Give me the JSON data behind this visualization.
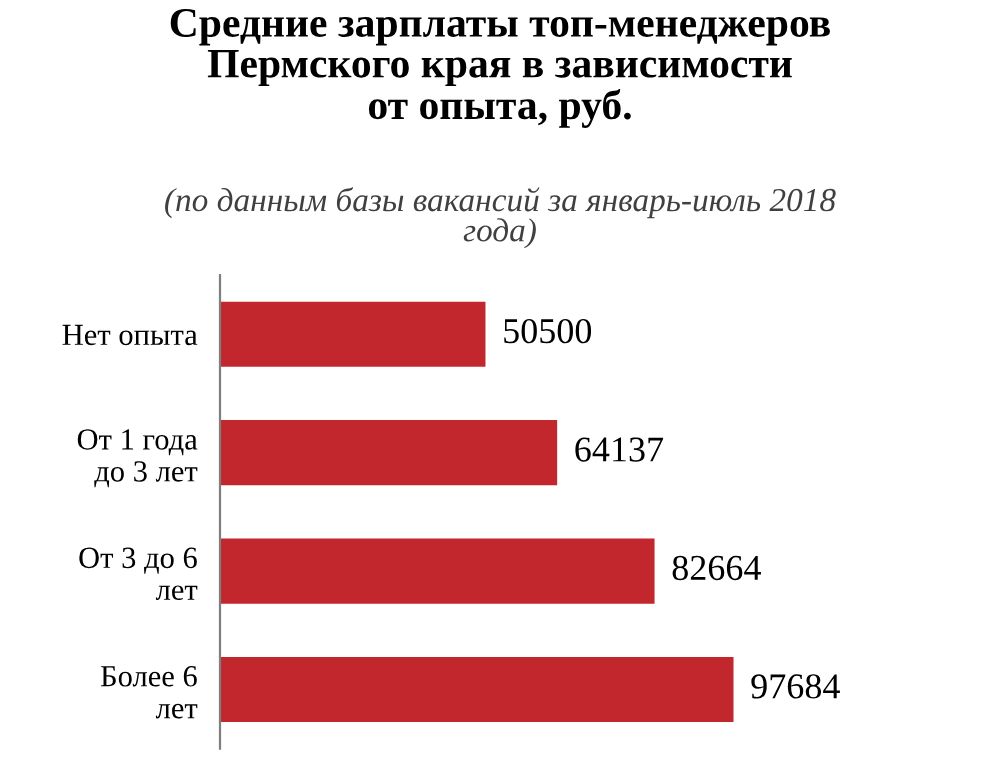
{
  "chart_data": {
    "type": "bar",
    "orientation": "horizontal",
    "title": "Средние зарплаты топ-менеджеров\nПермского края в зависимости\nот опыта, руб.",
    "subtitle": "(по данным базы вакансий за январь-июль 2018\nгода)",
    "categories": [
      "Нет опыта",
      "От 1 года\nдо 3 лет",
      "От 3 до 6\nлет",
      "Более 6\nлет"
    ],
    "values": [
      50500,
      64137,
      82664,
      97684
    ],
    "color": "#c1272d",
    "data_labels": true,
    "grid": false,
    "legend": false
  }
}
